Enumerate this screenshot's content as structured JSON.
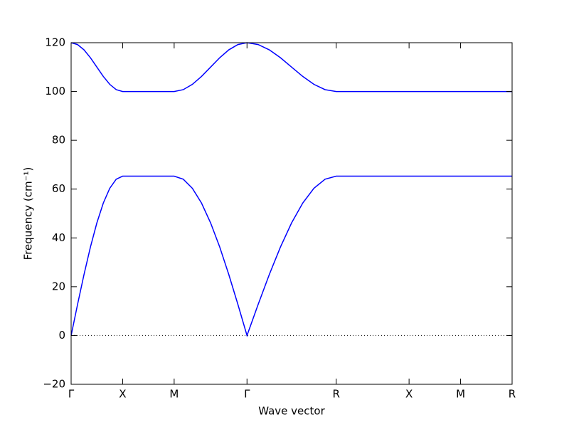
{
  "chart_data": {
    "type": "line",
    "x_label": "Wave vector",
    "y_label": "Frequency (cm⁻¹)",
    "x": [
      0,
      0.0625,
      0.125,
      0.1875,
      0.25,
      0.3125,
      0.375,
      0.4375,
      0.5,
      1.0,
      1.0884,
      1.1768,
      1.2652,
      1.3536,
      1.442,
      1.5303,
      1.6187,
      1.707,
      1.8153,
      1.9235,
      2.0318,
      2.14,
      2.2483,
      2.3565,
      2.4648,
      2.573,
      3.28,
      3.78,
      4.28
    ],
    "series": [
      {
        "name": "branch 1",
        "color": "#0000ff",
        "values": [
          0,
          12.74,
          24.99,
          36.28,
          46.17,
          54.3,
          60.33,
          64.05,
          65.3,
          65.3,
          64.05,
          60.33,
          54.3,
          46.17,
          36.28,
          24.99,
          12.74,
          0,
          12.74,
          24.99,
          36.28,
          46.17,
          54.3,
          60.33,
          64.05,
          65.3,
          65.3,
          65.3,
          65.3
        ]
      },
      {
        "name": "branch 2",
        "color": "#0000ff",
        "values": [
          120,
          119.24,
          117.07,
          113.83,
          110,
          106.17,
          102.93,
          100.76,
          100,
          100,
          100.76,
          102.93,
          106.17,
          110,
          113.83,
          117.07,
          119.24,
          120,
          119.24,
          117.07,
          113.83,
          110,
          106.17,
          102.93,
          100.76,
          100,
          100,
          100,
          100
        ]
      }
    ],
    "xlim": [
      0,
      4.28
    ],
    "ylim": [
      -20,
      120
    ],
    "xticks": [
      {
        "value": 0,
        "label": "Γ"
      },
      {
        "value": 0.5,
        "label": "X"
      },
      {
        "value": 1.0,
        "label": "M"
      },
      {
        "value": 1.707,
        "label": "Γ"
      },
      {
        "value": 2.573,
        "label": "R"
      },
      {
        "value": 3.28,
        "label": "X"
      },
      {
        "value": 3.78,
        "label": "M"
      },
      {
        "value": 4.28,
        "label": "R"
      }
    ],
    "yticks": [
      {
        "value": -20,
        "label": "−20"
      },
      0,
      20,
      40,
      60,
      80,
      100,
      120
    ],
    "hlines": [
      0
    ],
    "grid": false
  }
}
